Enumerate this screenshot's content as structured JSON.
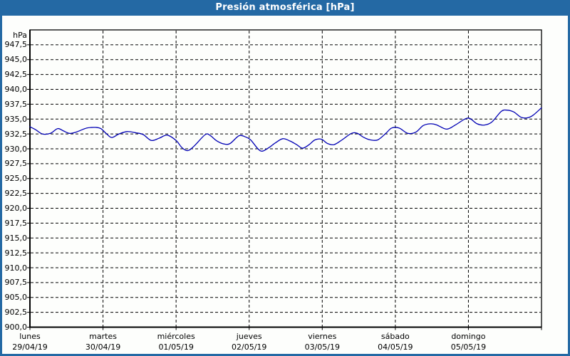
{
  "window": {
    "title": "Presión atmosférica [hPa]"
  },
  "chart_data": {
    "type": "line",
    "title": "Presión atmosférica [hPa]",
    "legend": "none",
    "grid": {
      "horizontal": "dashed",
      "vertical": "dashed",
      "dash_color": "#000000"
    },
    "y_axis": {
      "unit_label": "hPa",
      "min": 900.0,
      "max": 950.0,
      "step": 2.5,
      "decimal_separator": ",",
      "tick_labels": [
        "947,5",
        "945,0",
        "942,5",
        "940,0",
        "937,5",
        "935,0",
        "932,5",
        "930,0",
        "927,5",
        "925,0",
        "922,5",
        "920,0",
        "917,5",
        "915,0",
        "912,5",
        "910,0",
        "907,5",
        "905,0",
        "902,5",
        "900,0"
      ]
    },
    "x_axis": {
      "unit": "day",
      "days": [
        {
          "name": "lunes",
          "date": "29/04/19"
        },
        {
          "name": "martes",
          "date": "30/04/19"
        },
        {
          "name": "miércoles",
          "date": "01/05/19"
        },
        {
          "name": "jueves",
          "date": "02/05/19"
        },
        {
          "name": "viernes",
          "date": "03/05/19"
        },
        {
          "name": "sábado",
          "date": "04/05/19"
        },
        {
          "name": "domingo",
          "date": "05/05/19"
        }
      ]
    },
    "series": [
      {
        "name": "Presión atmosférica",
        "color": "#0000b4",
        "points": [
          [
            0.0,
            933.7
          ],
          [
            0.08,
            933.2
          ],
          [
            0.17,
            932.5
          ],
          [
            0.28,
            932.6
          ],
          [
            0.38,
            933.4
          ],
          [
            0.46,
            933.0
          ],
          [
            0.54,
            932.6
          ],
          [
            0.63,
            932.8
          ],
          [
            0.78,
            933.5
          ],
          [
            0.9,
            933.6
          ],
          [
            0.97,
            933.4
          ],
          [
            1.05,
            932.5
          ],
          [
            1.12,
            931.9
          ],
          [
            1.22,
            932.5
          ],
          [
            1.33,
            932.9
          ],
          [
            1.45,
            932.7
          ],
          [
            1.55,
            932.4
          ],
          [
            1.66,
            931.4
          ],
          [
            1.77,
            931.8
          ],
          [
            1.88,
            932.3
          ],
          [
            2.0,
            931.4
          ],
          [
            2.08,
            930.2
          ],
          [
            2.16,
            929.7
          ],
          [
            2.25,
            930.5
          ],
          [
            2.4,
            932.4
          ],
          [
            2.47,
            932.2
          ],
          [
            2.56,
            931.3
          ],
          [
            2.66,
            930.8
          ],
          [
            2.74,
            930.9
          ],
          [
            2.86,
            932.2
          ],
          [
            2.95,
            932.0
          ],
          [
            3.02,
            931.5
          ],
          [
            3.12,
            930.0
          ],
          [
            3.18,
            929.6
          ],
          [
            3.27,
            930.2
          ],
          [
            3.36,
            931.0
          ],
          [
            3.46,
            931.7
          ],
          [
            3.56,
            931.3
          ],
          [
            3.65,
            930.7
          ],
          [
            3.73,
            930.1
          ],
          [
            3.82,
            930.7
          ],
          [
            3.9,
            931.5
          ],
          [
            3.99,
            931.6
          ],
          [
            4.07,
            930.9
          ],
          [
            4.16,
            930.7
          ],
          [
            4.27,
            931.5
          ],
          [
            4.4,
            932.6
          ],
          [
            4.48,
            932.6
          ],
          [
            4.57,
            931.9
          ],
          [
            4.66,
            931.5
          ],
          [
            4.76,
            931.5
          ],
          [
            4.87,
            932.6
          ],
          [
            4.95,
            933.5
          ],
          [
            5.05,
            933.5
          ],
          [
            5.17,
            932.6
          ],
          [
            5.28,
            932.8
          ],
          [
            5.38,
            933.9
          ],
          [
            5.48,
            934.2
          ],
          [
            5.57,
            934.0
          ],
          [
            5.7,
            933.3
          ],
          [
            5.82,
            934.0
          ],
          [
            5.95,
            935.0
          ],
          [
            6.02,
            935.1
          ],
          [
            6.12,
            934.2
          ],
          [
            6.22,
            934.0
          ],
          [
            6.32,
            934.5
          ],
          [
            6.45,
            936.3
          ],
          [
            6.53,
            936.5
          ],
          [
            6.62,
            936.2
          ],
          [
            6.72,
            935.3
          ],
          [
            6.8,
            935.2
          ],
          [
            6.88,
            935.6
          ],
          [
            7.0,
            936.9
          ]
        ]
      }
    ],
    "colors": {
      "titlebar": "#2469a4",
      "window_border": "#2469a4",
      "plot_frame": "#000000",
      "line": "#0000b4",
      "background": "#fdfefc"
    }
  }
}
